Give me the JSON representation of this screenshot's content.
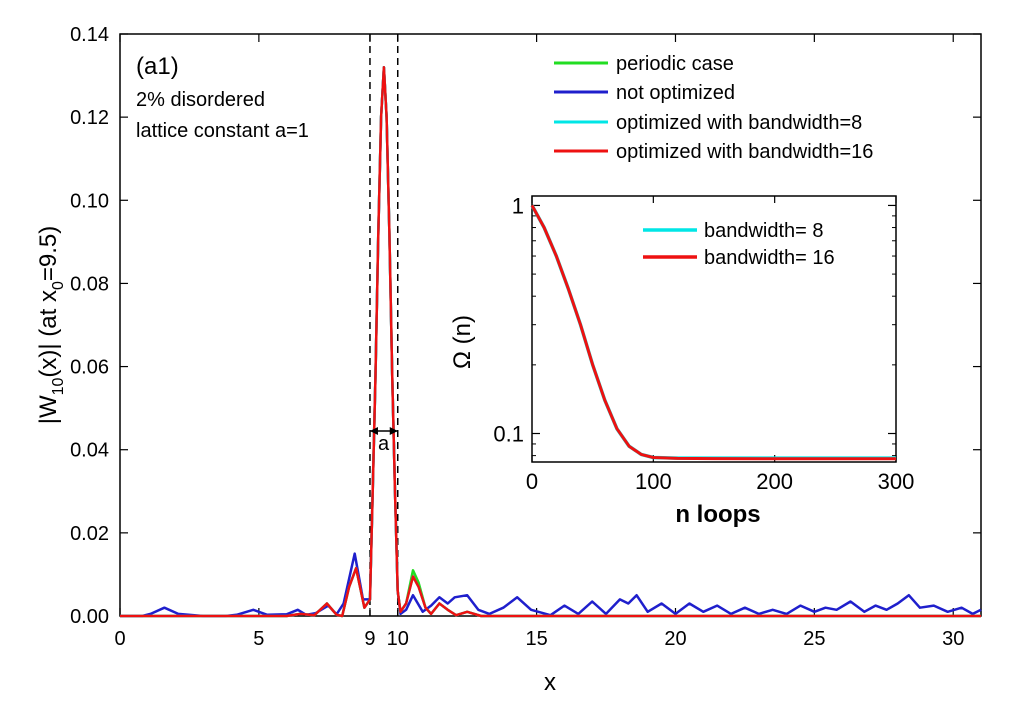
{
  "chart_data": [
    {
      "type": "line",
      "panel": "main",
      "xlabel": "x",
      "ylabel_parts": [
        "|W",
        "10",
        "(x)|  (at x",
        "0",
        "=9.5)"
      ],
      "xlim": [
        0,
        31
      ],
      "ylim": [
        0,
        0.14
      ],
      "xticks": [
        0,
        5,
        9,
        10,
        15,
        20,
        25,
        30
      ],
      "yticks": [
        0.0,
        0.02,
        0.04,
        0.06,
        0.08,
        0.1,
        0.12,
        0.14
      ],
      "ytick_labels": [
        "0.00",
        "0.02",
        "0.04",
        "0.06",
        "0.08",
        "0.10",
        "0.12",
        "0.14"
      ],
      "annotations": {
        "panel_label": "(a1)",
        "line1": "2% disordered",
        "line2": "lattice constant a=1",
        "width_marker": "a"
      },
      "dashed_lines_x": [
        9,
        10
      ],
      "arrow_range_x": [
        9,
        10
      ],
      "arrow_y": 0.0445,
      "legend_position": "top-right",
      "series": [
        {
          "name": "periodic case",
          "color": "#22dd22",
          "points": [
            [
              0,
              0
            ],
            [
              1,
              0
            ],
            [
              2,
              0
            ],
            [
              3,
              0
            ],
            [
              4,
              0
            ],
            [
              5,
              0
            ],
            [
              6,
              0
            ],
            [
              6.5,
              0.0005
            ],
            [
              7,
              0.0002
            ],
            [
              7.45,
              0.003
            ],
            [
              7.8,
              0.0003
            ],
            [
              8,
              0
            ],
            [
              8.25,
              0.007
            ],
            [
              8.5,
              0.0115
            ],
            [
              8.8,
              0.002
            ],
            [
              9.0,
              0.004
            ],
            [
              9.1,
              0.03
            ],
            [
              9.2,
              0.058
            ],
            [
              9.3,
              0.092
            ],
            [
              9.4,
              0.12
            ],
            [
              9.5,
              0.132
            ],
            [
              9.6,
              0.12
            ],
            [
              9.7,
              0.092
            ],
            [
              9.8,
              0.058
            ],
            [
              9.9,
              0.03
            ],
            [
              10.0,
              0.006
            ],
            [
              10.1,
              0.001
            ],
            [
              10.3,
              0.003
            ],
            [
              10.55,
              0.011
            ],
            [
              10.75,
              0.008
            ],
            [
              11.0,
              0.002
            ],
            [
              11.2,
              0.0005
            ],
            [
              11.5,
              0.003
            ],
            [
              11.8,
              0.0015
            ],
            [
              12.1,
              0.0002
            ],
            [
              12.5,
              0.001
            ],
            [
              13,
              0
            ],
            [
              14,
              0
            ],
            [
              16,
              0
            ],
            [
              20,
              0
            ],
            [
              25,
              0
            ],
            [
              31,
              0
            ]
          ]
        },
        {
          "name": "not optimized",
          "color": "#1f1fcc",
          "points": [
            [
              0,
              0
            ],
            [
              0.8,
              0
            ],
            [
              1.1,
              0.0005
            ],
            [
              1.6,
              0.002
            ],
            [
              2.1,
              0.0005
            ],
            [
              3,
              0
            ],
            [
              3.8,
              0
            ],
            [
              4.2,
              0.0003
            ],
            [
              4.8,
              0.0015
            ],
            [
              5.3,
              0.0003
            ],
            [
              6.0,
              0.0004
            ],
            [
              6.4,
              0.0015
            ],
            [
              6.7,
              0.0003
            ],
            [
              7.05,
              0.0007
            ],
            [
              7.5,
              0.0025
            ],
            [
              7.8,
              0.0004
            ],
            [
              8.05,
              0.003
            ],
            [
              8.45,
              0.015
            ],
            [
              8.75,
              0.004
            ],
            [
              9.0,
              0.004
            ],
            [
              9.1,
              0.03
            ],
            [
              9.2,
              0.058
            ],
            [
              9.3,
              0.092
            ],
            [
              9.4,
              0.12
            ],
            [
              9.5,
              0.132
            ],
            [
              9.6,
              0.12
            ],
            [
              9.7,
              0.092
            ],
            [
              9.8,
              0.058
            ],
            [
              9.9,
              0.03
            ],
            [
              10.0,
              0.006
            ],
            [
              10.1,
              0.0005
            ],
            [
              10.3,
              0.0015
            ],
            [
              10.55,
              0.005
            ],
            [
              10.9,
              0.001
            ],
            [
              11.2,
              0.0025
            ],
            [
              11.5,
              0.0045
            ],
            [
              11.8,
              0.003
            ],
            [
              12.05,
              0.0045
            ],
            [
              12.5,
              0.005
            ],
            [
              12.9,
              0.0015
            ],
            [
              13.3,
              0.0005
            ],
            [
              13.8,
              0.002
            ],
            [
              14.3,
              0.0045
            ],
            [
              14.8,
              0.0015
            ],
            [
              15.5,
              0.0002
            ],
            [
              16.0,
              0.0025
            ],
            [
              16.5,
              0.0005
            ],
            [
              17.0,
              0.0035
            ],
            [
              17.5,
              0.0005
            ],
            [
              18.0,
              0.004
            ],
            [
              18.3,
              0.003
            ],
            [
              18.6,
              0.005
            ],
            [
              19.0,
              0.001
            ],
            [
              19.5,
              0.003
            ],
            [
              20.0,
              0.0005
            ],
            [
              20.5,
              0.003
            ],
            [
              21.0,
              0.001
            ],
            [
              21.5,
              0.0025
            ],
            [
              22.0,
              0.0005
            ],
            [
              22.5,
              0.002
            ],
            [
              23.0,
              0.0005
            ],
            [
              23.5,
              0.0015
            ],
            [
              24.0,
              0.0005
            ],
            [
              24.5,
              0.0025
            ],
            [
              25.0,
              0.001
            ],
            [
              25.4,
              0.002
            ],
            [
              25.8,
              0.0015
            ],
            [
              26.3,
              0.0035
            ],
            [
              26.8,
              0.001
            ],
            [
              27.2,
              0.0025
            ],
            [
              27.6,
              0.0015
            ],
            [
              28.0,
              0.003
            ],
            [
              28.4,
              0.005
            ],
            [
              28.8,
              0.002
            ],
            [
              29.3,
              0.0025
            ],
            [
              29.8,
              0.001
            ],
            [
              30.3,
              0.002
            ],
            [
              30.7,
              0.0005
            ],
            [
              31,
              0.0015
            ]
          ]
        },
        {
          "name": "optimized with bandwidth=8",
          "color": "#00e6e6",
          "points": [
            [
              0,
              0
            ],
            [
              1,
              0
            ],
            [
              2,
              0
            ],
            [
              3,
              0
            ],
            [
              4,
              0
            ],
            [
              5,
              0
            ],
            [
              6,
              0
            ],
            [
              6.5,
              0.0005
            ],
            [
              7,
              0.0002
            ],
            [
              7.45,
              0.003
            ],
            [
              7.8,
              0.0003
            ],
            [
              8,
              0
            ],
            [
              8.25,
              0.007
            ],
            [
              8.5,
              0.0115
            ],
            [
              8.8,
              0.002
            ],
            [
              9.0,
              0.004
            ],
            [
              9.1,
              0.03
            ],
            [
              9.2,
              0.058
            ],
            [
              9.3,
              0.092
            ],
            [
              9.4,
              0.12
            ],
            [
              9.5,
              0.132
            ],
            [
              9.6,
              0.12
            ],
            [
              9.7,
              0.092
            ],
            [
              9.8,
              0.058
            ],
            [
              9.9,
              0.03
            ],
            [
              10.0,
              0.006
            ],
            [
              10.1,
              0.001
            ],
            [
              10.3,
              0.003
            ],
            [
              10.55,
              0.0095
            ],
            [
              10.75,
              0.007
            ],
            [
              11.0,
              0.002
            ],
            [
              11.2,
              0.0005
            ],
            [
              11.5,
              0.003
            ],
            [
              11.8,
              0.0015
            ],
            [
              12.1,
              0.0002
            ],
            [
              12.5,
              0.001
            ],
            [
              13,
              0
            ],
            [
              14,
              0
            ],
            [
              16,
              0
            ],
            [
              20,
              0
            ],
            [
              25,
              0
            ],
            [
              31,
              0
            ]
          ]
        },
        {
          "name": "optimized with bandwidth=16",
          "color": "#ee1111",
          "points": [
            [
              0,
              0
            ],
            [
              1,
              0
            ],
            [
              2,
              0
            ],
            [
              3,
              0
            ],
            [
              4,
              0
            ],
            [
              5,
              0
            ],
            [
              6,
              0
            ],
            [
              6.5,
              0.0005
            ],
            [
              7,
              0.0002
            ],
            [
              7.45,
              0.003
            ],
            [
              7.8,
              0.0003
            ],
            [
              8,
              0
            ],
            [
              8.25,
              0.007
            ],
            [
              8.5,
              0.0115
            ],
            [
              8.8,
              0.002
            ],
            [
              9.0,
              0.004
            ],
            [
              9.1,
              0.03
            ],
            [
              9.2,
              0.058
            ],
            [
              9.3,
              0.092
            ],
            [
              9.4,
              0.12
            ],
            [
              9.5,
              0.132
            ],
            [
              9.6,
              0.12
            ],
            [
              9.7,
              0.092
            ],
            [
              9.8,
              0.058
            ],
            [
              9.9,
              0.03
            ],
            [
              10.0,
              0.006
            ],
            [
              10.1,
              0.001
            ],
            [
              10.3,
              0.003
            ],
            [
              10.55,
              0.0095
            ],
            [
              10.75,
              0.007
            ],
            [
              11.0,
              0.002
            ],
            [
              11.2,
              0.0005
            ],
            [
              11.5,
              0.003
            ],
            [
              11.8,
              0.0015
            ],
            [
              12.1,
              0.0002
            ],
            [
              12.5,
              0.001
            ],
            [
              13,
              0
            ],
            [
              14,
              0
            ],
            [
              16,
              0
            ],
            [
              20,
              0
            ],
            [
              25,
              0
            ],
            [
              31,
              0
            ]
          ]
        }
      ]
    },
    {
      "type": "line",
      "panel": "inset",
      "xlabel": "n loops",
      "ylabel": "Ω (n)",
      "yscale": "log",
      "xlim": [
        0,
        300
      ],
      "ylim": [
        0.075,
        1.1
      ],
      "xticks": [
        0,
        100,
        200,
        300
      ],
      "yticks": [
        1,
        0.1
      ],
      "ytick_labels": [
        "1",
        "0.1"
      ],
      "legend_position": "top-right",
      "series": [
        {
          "name": "bandwidth= 8",
          "color": "#00e6e6",
          "x": [
            0,
            10,
            20,
            30,
            40,
            50,
            60,
            70,
            80,
            90,
            100,
            120,
            150,
            200,
            250,
            300
          ],
          "y": [
            1.0,
            0.8,
            0.6,
            0.43,
            0.3,
            0.2,
            0.14,
            0.105,
            0.088,
            0.081,
            0.0785,
            0.078,
            0.078,
            0.078,
            0.078,
            0.078
          ]
        },
        {
          "name": "bandwidth= 16",
          "color": "#ee1111",
          "x": [
            0,
            10,
            20,
            30,
            40,
            50,
            60,
            70,
            80,
            90,
            100,
            120,
            150,
            200,
            250,
            300
          ],
          "y": [
            1.0,
            0.8,
            0.6,
            0.43,
            0.3,
            0.2,
            0.14,
            0.105,
            0.088,
            0.081,
            0.0785,
            0.0778,
            0.0776,
            0.0775,
            0.0775,
            0.0775
          ]
        }
      ]
    }
  ]
}
